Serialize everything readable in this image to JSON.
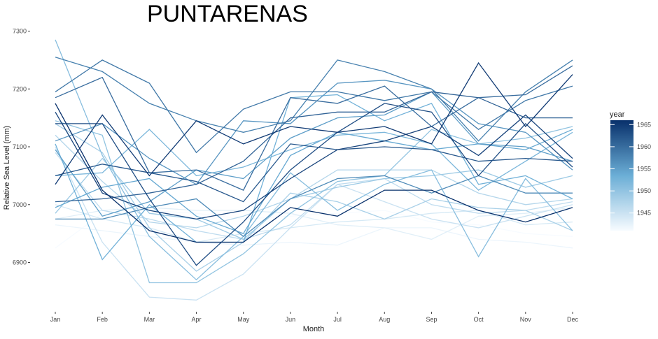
{
  "chart_data": {
    "type": "line",
    "title": "PUNTARENAS",
    "xlabel": "Month",
    "ylabel": "Relative Sea Level (mm)",
    "categories": [
      "Jan",
      "Feb",
      "Mar",
      "Apr",
      "May",
      "Jun",
      "Jul",
      "Aug",
      "Sep",
      "Oct",
      "Nov",
      "Dec"
    ],
    "yticks": [
      6900,
      7000,
      7100,
      7200,
      7300
    ],
    "ylim": [
      6830,
      7300
    ],
    "grid": false,
    "legend": {
      "title": "year",
      "position": "right",
      "ticks": [
        1945,
        1950,
        1955,
        1960,
        1965
      ],
      "range": [
        1941,
        1966
      ],
      "color_low": "#f7fbff",
      "color_high": "#08306b"
    },
    "series": [
      {
        "year": 1941,
        "values": [
          6925,
          6985,
          6990,
          6985,
          6975,
          6980,
          6985,
          6990,
          6970,
          6965,
          6950,
          6945
        ]
      },
      {
        "year": 1942,
        "values": [
          6965,
          6955,
          6945,
          6935,
          6930,
          6935,
          6930,
          6960,
          6960,
          6940,
          6935,
          6925
        ]
      },
      {
        "year": 1943,
        "values": [
          6975,
          6990,
          6995,
          6990,
          6990,
          6985,
          6965,
          6960,
          6940,
          6980,
          6985,
          6995
        ]
      },
      {
        "year": 1944,
        "values": [
          7000,
          6975,
          6960,
          6935,
          6950,
          6960,
          6970,
          6975,
          6985,
          6990,
          6965,
          6970
        ]
      },
      {
        "year": 1945,
        "values": [
          7100,
          6935,
          6840,
          6835,
          6880,
          6960,
          7035,
          7005,
          6975,
          6960,
          6980,
          7000
        ]
      },
      {
        "year": 1946,
        "values": [
          7090,
          6990,
          6975,
          6955,
          6940,
          6965,
          7035,
          7045,
          7000,
          6985,
          6990,
          7005
        ]
      },
      {
        "year": 1947,
        "values": [
          7120,
          7040,
          6970,
          6960,
          6980,
          7010,
          7060,
          7060,
          7060,
          7020,
          7000,
          7010
        ]
      },
      {
        "year": 1948,
        "values": [
          7140,
          7090,
          6960,
          6885,
          6935,
          7020,
          7005,
          6975,
          7010,
          6995,
          6990,
          6955
        ]
      },
      {
        "year": 1949,
        "values": [
          6985,
          7080,
          6985,
          6975,
          6940,
          7010,
          7030,
          7045,
          7050,
          7060,
          7030,
          7050
        ]
      },
      {
        "year": 1950,
        "values": [
          7145,
          7120,
          6865,
          6865,
          6915,
          6985,
          7040,
          7050,
          7130,
          7105,
          7115,
          7135
        ]
      },
      {
        "year": 1951,
        "values": [
          7285,
          7085,
          6945,
          6870,
          6945,
          7055,
          6990,
          7035,
          7060,
          6910,
          7045,
          6955
        ]
      },
      {
        "year": 1952,
        "values": [
          7050,
          7055,
          7130,
          7050,
          7065,
          7095,
          7120,
          7125,
          7105,
          7025,
          7075,
          7125
        ]
      },
      {
        "year": 1953,
        "values": [
          7105,
          6905,
          7000,
          6935,
          6935,
          7185,
          7190,
          7145,
          7175,
          7035,
          7050,
          7010
        ]
      },
      {
        "year": 1954,
        "values": [
          6995,
          7030,
          7045,
          6980,
          6950,
          7085,
          7125,
          7110,
          7095,
          7105,
          7095,
          7130
        ]
      },
      {
        "year": 1955,
        "values": [
          7095,
          6980,
          7005,
          7060,
          7045,
          7115,
          7150,
          7155,
          7195,
          7105,
          7100,
          7075
        ]
      },
      {
        "year": 1956,
        "values": [
          7110,
          7140,
          7080,
          7035,
          7145,
          7140,
          7210,
          7215,
          7200,
          7140,
          7125,
          7060
        ]
      },
      {
        "year": 1957,
        "values": [
          6975,
          6975,
          6995,
          7010,
          6945,
          7010,
          7045,
          7050,
          7020,
          7050,
          7020,
          7020
        ]
      },
      {
        "year": 1958,
        "values": [
          7255,
          7230,
          7175,
          7145,
          7125,
          7145,
          7250,
          7230,
          7200,
          7110,
          7195,
          7250
        ]
      },
      {
        "year": 1959,
        "values": [
          7195,
          7250,
          7210,
          7090,
          7165,
          7195,
          7195,
          7180,
          7195,
          7130,
          7180,
          7205
        ]
      },
      {
        "year": 1960,
        "values": [
          7185,
          7220,
          7055,
          7060,
          7025,
          7185,
          7175,
          7205,
          7135,
          7185,
          7190,
          7240
        ]
      },
      {
        "year": 1961,
        "values": [
          7005,
          7010,
          7020,
          7035,
          7075,
          7150,
          7160,
          7160,
          7195,
          7185,
          7150,
          7150
        ]
      },
      {
        "year": 1962,
        "values": [
          7050,
          7070,
          7055,
          7040,
          7005,
          7105,
          7095,
          7100,
          7095,
          7075,
          7080,
          7075
        ]
      },
      {
        "year": 1963,
        "values": [
          7140,
          7140,
          7010,
          6895,
          6970,
          7060,
          7125,
          7175,
          7160,
          7050,
          7140,
          7065
        ]
      },
      {
        "year": 1964,
        "values": [
          7160,
          7020,
          6990,
          6975,
          6990,
          7045,
          7095,
          7110,
          7135,
          7085,
          7155,
          7080
        ]
      },
      {
        "year": 1965,
        "values": [
          7035,
          7155,
          7050,
          7145,
          7105,
          7135,
          7125,
          7135,
          7105,
          7245,
          7135,
          7225
        ]
      },
      {
        "year": 1966,
        "values": [
          7175,
          7025,
          6955,
          6935,
          6935,
          6995,
          6980,
          7025,
          7025,
          6990,
          6970,
          6995
        ]
      }
    ]
  }
}
